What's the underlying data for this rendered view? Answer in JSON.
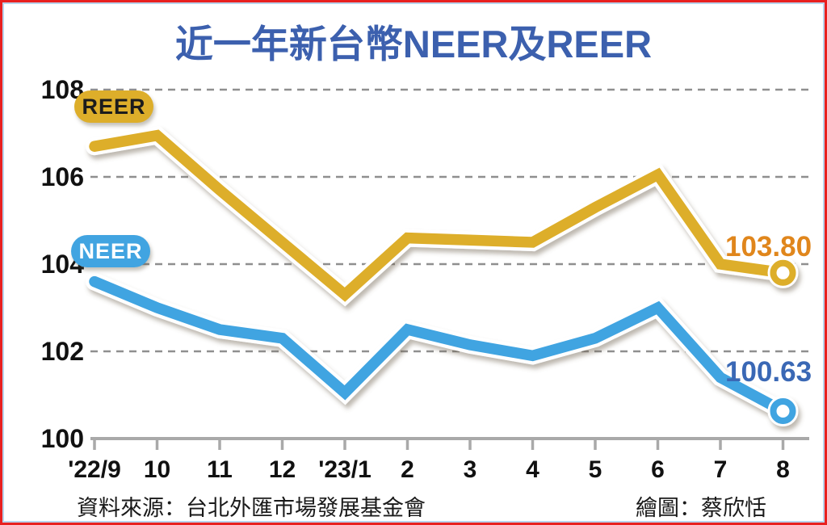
{
  "title": "近一年新台幣NEER及REER",
  "title_color": "#3c60ae",
  "frame": {
    "border_color": "#e8201f",
    "inner_line_color": "#b9d3ec"
  },
  "footer": {
    "source": "資料來源：台北外匯市場發展基金會",
    "credit": "繪圖：蔡欣恬"
  },
  "chart_data": {
    "type": "line",
    "title": "近一年新台幣NEER及REER",
    "categories": [
      "'22/9",
      "10",
      "11",
      "12",
      "'23/1",
      "2",
      "3",
      "4",
      "5",
      "6",
      "7",
      "8"
    ],
    "y_ticks": [
      108,
      106,
      104,
      102,
      100
    ],
    "ylim": [
      100,
      108.4
    ],
    "grid": "horizontal-dashed",
    "grid_color": "#8f8f8f",
    "axis_color": "#a9a9a9",
    "legend_position": "pills-on-chart-left",
    "series": [
      {
        "name": "REER",
        "color": "#ddae2a",
        "end_label": "103.80",
        "end_label_color": "#e0861c",
        "values": [
          106.7,
          106.95,
          105.7,
          104.5,
          103.3,
          104.6,
          104.55,
          104.5,
          105.3,
          106.05,
          104.0,
          103.8
        ]
      },
      {
        "name": "NEER",
        "color": "#41a4e1",
        "end_label": "100.63",
        "end_label_color": "#3a68b5",
        "values": [
          103.6,
          103.0,
          102.5,
          102.3,
          101.05,
          102.5,
          102.15,
          101.9,
          102.3,
          103.0,
          101.4,
          100.63
        ]
      }
    ]
  }
}
